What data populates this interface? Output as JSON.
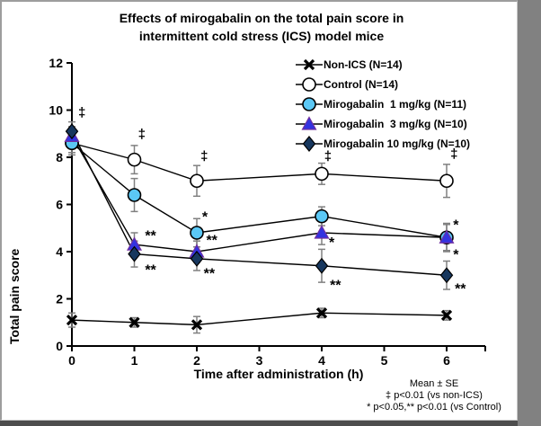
{
  "chart_data": {
    "type": "line",
    "title_lines": [
      "Effects of mirogabalin on the total pain score in",
      "intermittent cold stress (ICS) model mice"
    ],
    "xlabel": "Time after administration (h)",
    "ylabel": "Total pain score",
    "x": [
      0,
      1,
      2,
      4,
      6
    ],
    "xticks": [
      0,
      1,
      2,
      3,
      4,
      5,
      6
    ],
    "yticks": [
      0,
      2,
      4,
      6,
      8,
      10,
      12
    ],
    "xlim": [
      0,
      6.6
    ],
    "ylim": [
      0,
      12
    ],
    "grid": false,
    "legend_position": "top-right-inside",
    "error_bar_color": "#808080",
    "line_color": "#000000",
    "series": [
      {
        "name": "Non-ICS (N=14)",
        "marker": "x",
        "color": "#000000",
        "values": [
          1.1,
          1.0,
          0.9,
          1.4,
          1.3
        ],
        "se": [
          0.3,
          0.2,
          0.35,
          0.2,
          0.2
        ]
      },
      {
        "name": "Control (N=14)",
        "marker": "circle",
        "fill": "#FFFFFF",
        "stroke": "#000000",
        "values": [
          8.6,
          7.9,
          7.0,
          7.3,
          7.0
        ],
        "se": [
          0.5,
          0.6,
          0.65,
          0.45,
          0.7
        ]
      },
      {
        "name": "Mirogabalin  1 mg/kg (N=11)",
        "marker": "circle",
        "fill": "#5BC8F5",
        "stroke": "#000000",
        "values": [
          8.6,
          6.4,
          4.8,
          5.5,
          4.6
        ],
        "se": [
          0.4,
          0.7,
          0.6,
          0.4,
          0.55
        ]
      },
      {
        "name": "Mirogabalin  3 mg/kg (N=10)",
        "marker": "triangle",
        "fill": "#3333E0",
        "stroke": "#7030A0",
        "values": [
          8.9,
          4.3,
          4.0,
          4.8,
          4.6
        ],
        "se": [
          0.4,
          0.5,
          0.45,
          0.5,
          0.6
        ]
      },
      {
        "name": "Mirogabalin 10 mg/kg (N=10)",
        "marker": "diamond",
        "fill": "#17375E",
        "stroke": "#000000",
        "values": [
          9.1,
          3.9,
          3.7,
          3.4,
          3.0
        ],
        "se": [
          0.4,
          0.55,
          0.5,
          0.7,
          0.6
        ]
      }
    ],
    "annotations": [
      {
        "text": "‡",
        "x": 0.16,
        "y": 9.9
      },
      {
        "text": "‡",
        "x": 1.12,
        "y": 9.0
      },
      {
        "text": "‡",
        "x": 2.12,
        "y": 8.05
      },
      {
        "text": "‡",
        "x": 4.1,
        "y": 8.05
      },
      {
        "text": "‡",
        "x": 6.12,
        "y": 8.15
      },
      {
        "text": "**",
        "x": 1.26,
        "y": 4.75
      },
      {
        "text": "**",
        "x": 1.26,
        "y": 3.3
      },
      {
        "text": "*",
        "x": 2.13,
        "y": 5.55
      },
      {
        "text": "**",
        "x": 2.24,
        "y": 4.55
      },
      {
        "text": "**",
        "x": 2.2,
        "y": 3.15
      },
      {
        "text": "*",
        "x": 4.16,
        "y": 4.45
      },
      {
        "text": "**",
        "x": 4.22,
        "y": 2.65
      },
      {
        "text": "*",
        "x": 6.15,
        "y": 5.2
      },
      {
        "text": "*",
        "x": 6.15,
        "y": 3.95
      },
      {
        "text": "**",
        "x": 6.22,
        "y": 2.5
      }
    ],
    "footnotes": [
      "Mean ± SE",
      "‡ p<0.01 (vs non-ICS)",
      "* p<0.05,** p<0.01 (vs Control)"
    ]
  }
}
